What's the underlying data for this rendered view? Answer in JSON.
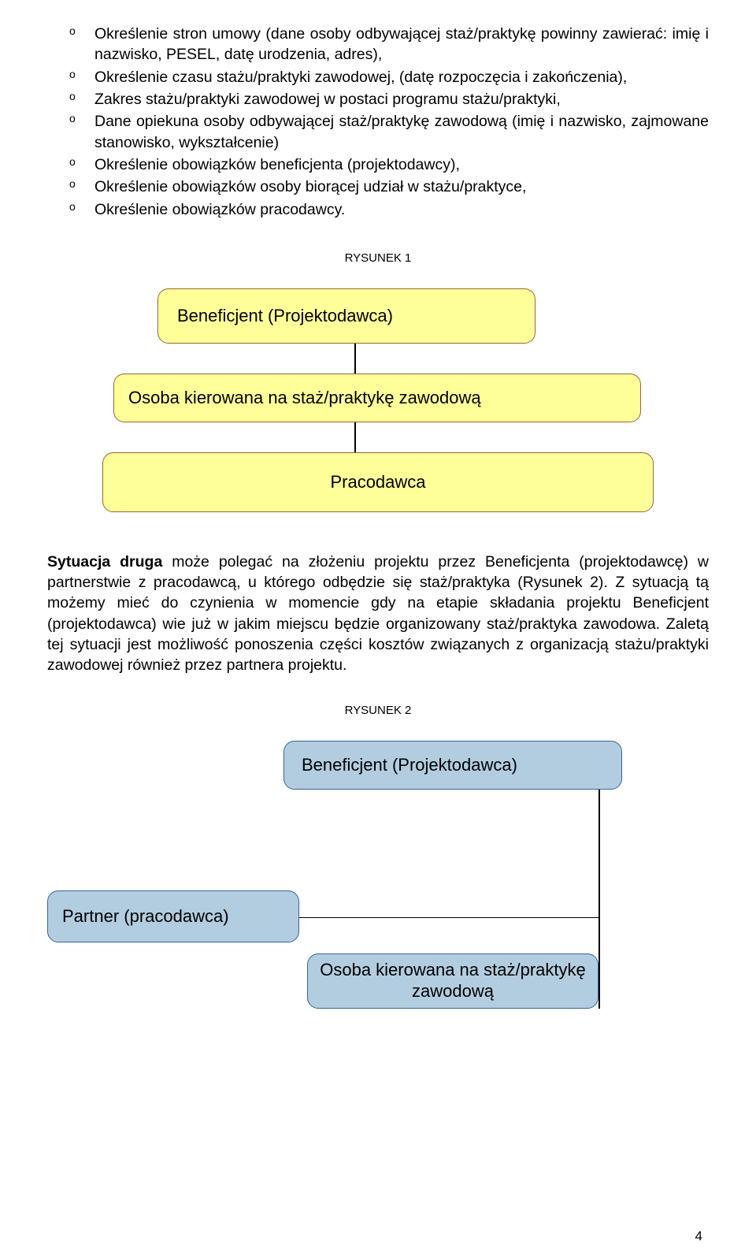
{
  "list_marker": "o",
  "list_items": [
    "Określenie stron umowy (dane osoby odbywającej staż/praktykę powinny zawierać: imię i nazwisko, PESEL, datę urodzenia, adres),",
    "Określenie czasu stażu/praktyki zawodowej, (datę rozpoczęcia i zakończenia),",
    "Zakres stażu/praktyki zawodowej w postaci programu stażu/praktyki,",
    "Dane opiekuna osoby odbywającej staż/praktykę zawodową (imię i nazwisko, zajmowane stanowisko, wykształcenie)",
    "Określenie obowiązków beneficjenta (projektodawcy),",
    "Określenie obowiązków osoby biorącej udział w stażu/praktyce,",
    "Określenie obowiązków pracodawcy."
  ],
  "figure1": {
    "label": "RYSUNEK 1",
    "box_bg": "#ffff99",
    "box_border": "#996633",
    "connector_color": "#000000",
    "font_family": "Arial",
    "font_size": 22,
    "boxes": {
      "b1": "Beneficjent (Projektodawca)",
      "b2": "Osoba kierowana na staż/praktykę zawodową",
      "b3": "Pracodawca"
    }
  },
  "paragraph": {
    "lead_bold": "Sytuacja druga",
    "text": " może polegać na złożeniu projektu przez Beneficjenta (projektodawcę) w partnerstwie z pracodawcą, u którego odbędzie się staż/praktyka (Rysunek 2). Z sytuacją tą możemy mieć do czynienia w momencie gdy na etapie składania projektu Beneficjent (projektodawca) wie już w jakim miejscu będzie organizowany staż/praktyka zawodowa. Zaletą tej sytuacji jest możliwość ponoszenia części kosztów związanych z organizacją stażu/praktyki zawodowej również przez partnera projektu."
  },
  "figure2": {
    "label": "RYSUNEK 2",
    "box_bg": "#b3cde0",
    "box_border": "#336699",
    "connector_color": "#000000",
    "font_family": "Arial",
    "font_size": 22,
    "boxes": {
      "b1": "Beneficjent (Projektodawca)",
      "b2": "Partner (pracodawca)",
      "b3": "Osoba kierowana na staż/praktykę zawodową"
    }
  },
  "page_number": "4"
}
